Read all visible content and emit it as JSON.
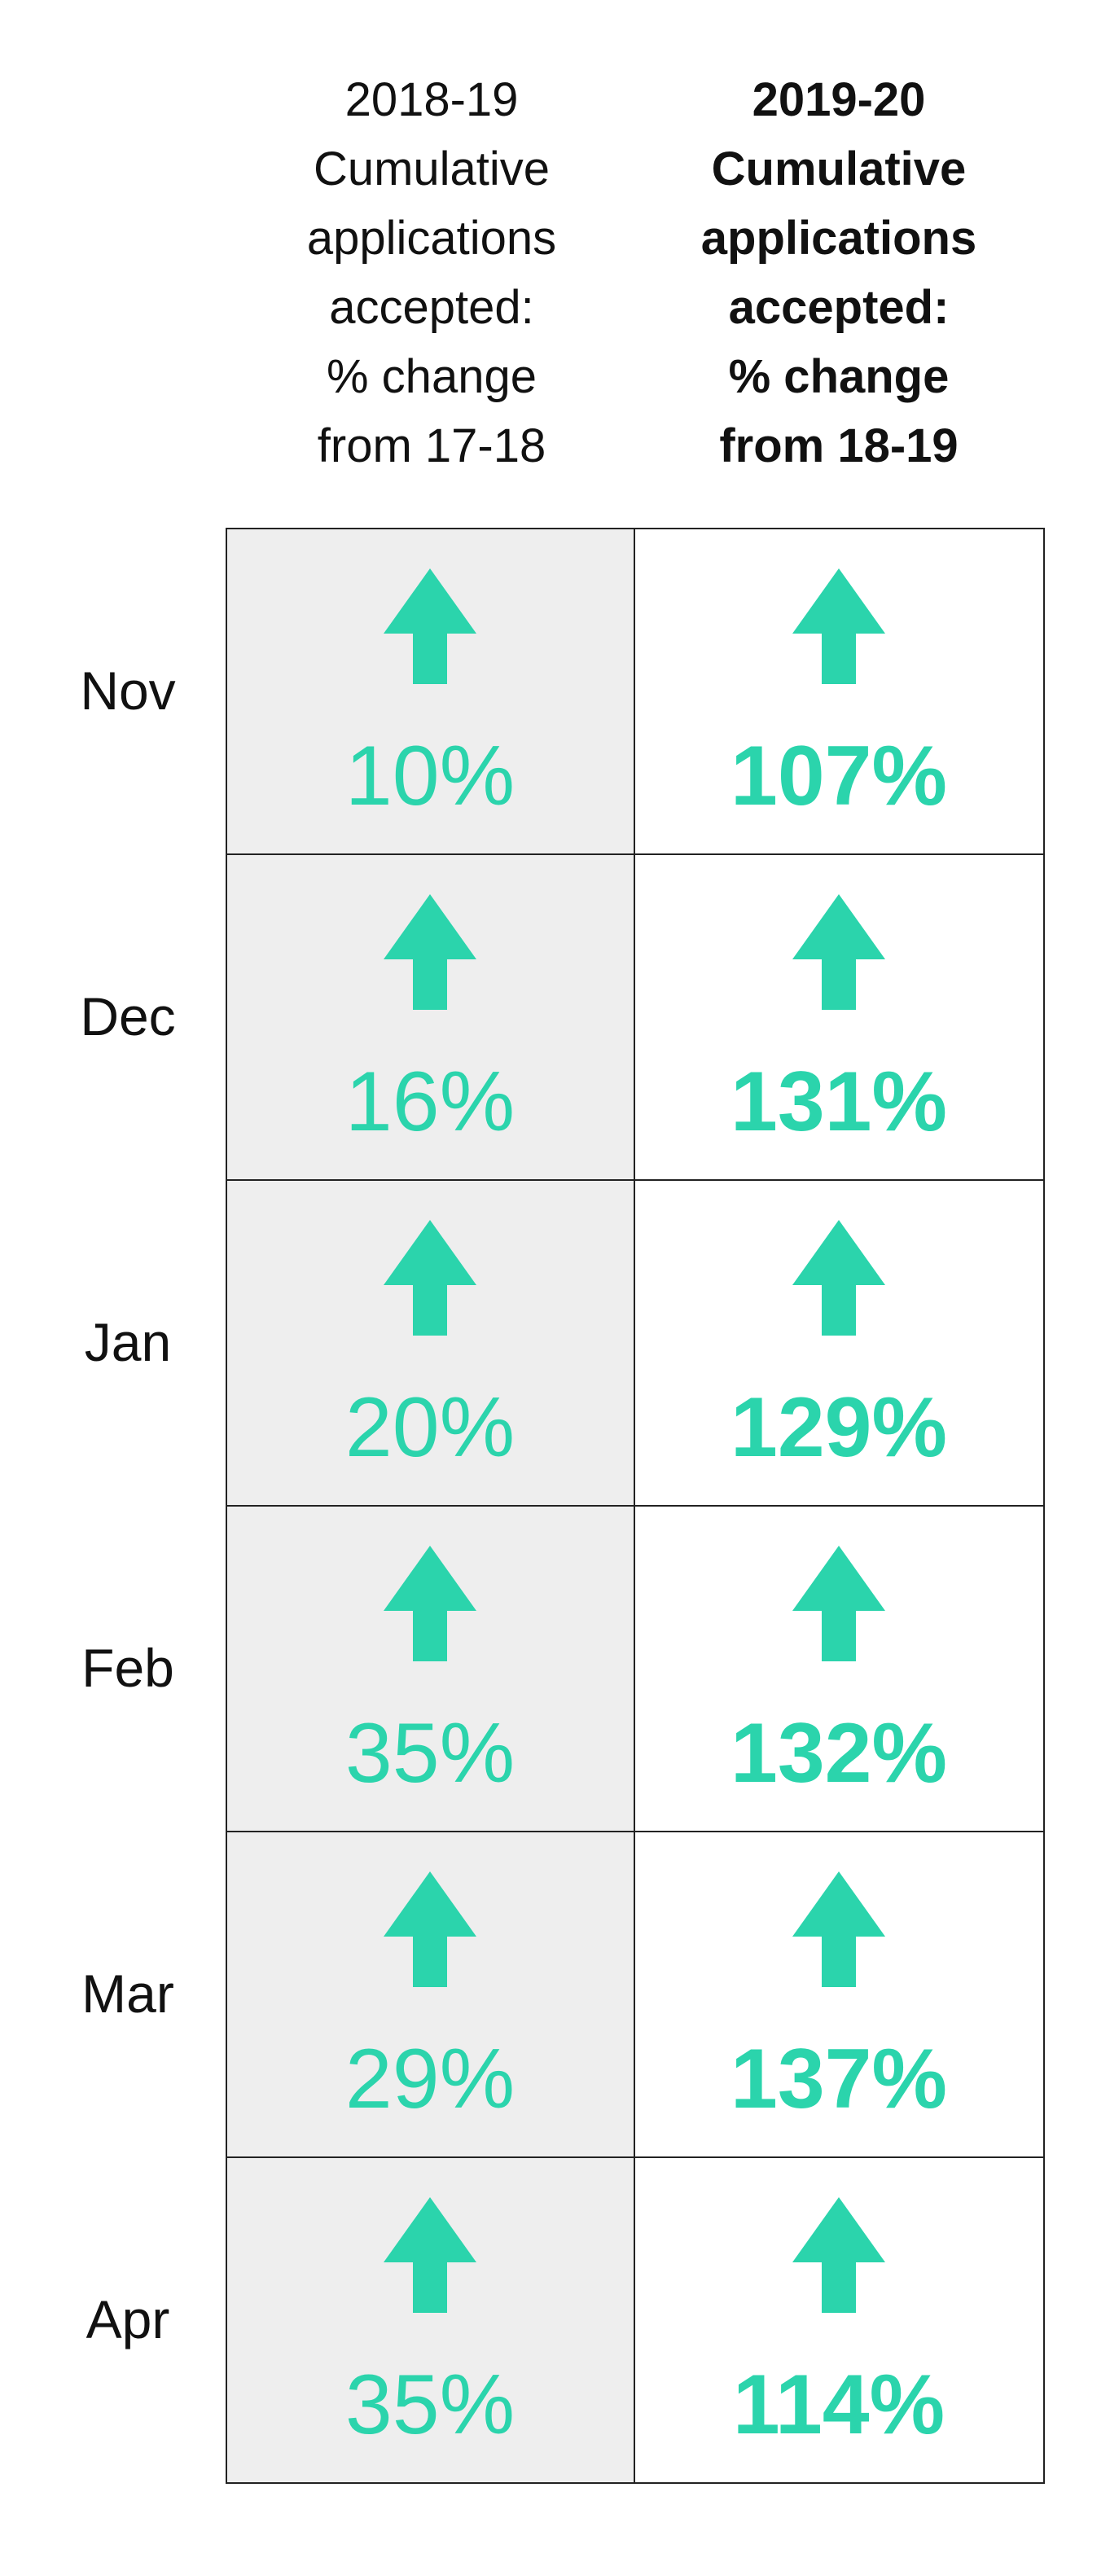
{
  "headers": {
    "prev": "2018-19\nCumulative\napplications\naccepted:\n% change\nfrom 17-18",
    "curr": "2019-20\nCumulative\napplications\naccepted:\n% change\nfrom 18-19"
  },
  "colors": {
    "accent": "#2bd4ac",
    "prev_cell_bg": "#eeeeee",
    "curr_cell_bg": "#ffffff",
    "grid": "#222222",
    "text": "#111111"
  },
  "icon": "arrow-up-icon",
  "chart_data": {
    "type": "table",
    "columns": [
      "2018-19 Cumulative applications accepted: % change from 17-18",
      "2019-20 Cumulative applications accepted: % change from 18-19"
    ],
    "rows": [
      {
        "month": "Nov",
        "prev": "10%",
        "curr": "107%",
        "prev_value": 10,
        "curr_value": 107,
        "direction": "up"
      },
      {
        "month": "Dec",
        "prev": "16%",
        "curr": "131%",
        "prev_value": 16,
        "curr_value": 131,
        "direction": "up"
      },
      {
        "month": "Jan",
        "prev": "20%",
        "curr": "129%",
        "prev_value": 20,
        "curr_value": 129,
        "direction": "up"
      },
      {
        "month": "Feb",
        "prev": "35%",
        "curr": "132%",
        "prev_value": 35,
        "curr_value": 132,
        "direction": "up"
      },
      {
        "month": "Mar",
        "prev": "29%",
        "curr": "137%",
        "prev_value": 29,
        "curr_value": 137,
        "direction": "up"
      },
      {
        "month": "Apr",
        "prev": "35%",
        "curr": "114%",
        "prev_value": 35,
        "curr_value": 114,
        "direction": "up"
      }
    ]
  }
}
